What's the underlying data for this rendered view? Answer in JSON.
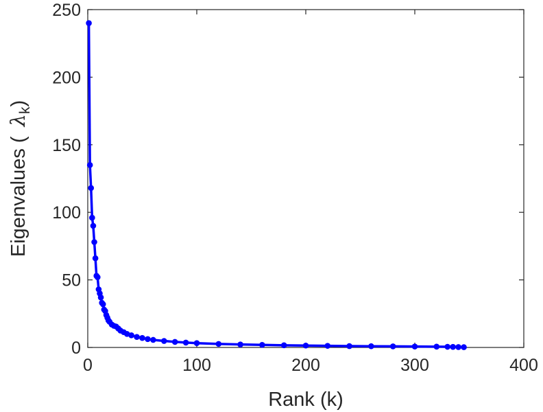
{
  "chart_data": {
    "type": "line",
    "title": "",
    "xlabel": "Rank (k)",
    "ylabel": {
      "prefix": "Eigenvalues (",
      "symbol": "λ",
      "subscript": "k",
      "suffix": ")"
    },
    "xlim": [
      0,
      400
    ],
    "ylim": [
      0,
      250
    ],
    "xticks": [
      0,
      100,
      200,
      300,
      400
    ],
    "yticks": [
      0,
      50,
      100,
      150,
      200,
      250
    ],
    "grid": false,
    "marker": "circle",
    "series": [
      {
        "color": "#0000ff",
        "x": [
          1,
          2,
          3,
          4,
          5,
          6,
          7,
          8,
          9,
          10,
          11,
          12,
          13,
          14,
          15,
          16,
          17,
          18,
          19,
          20,
          22,
          24,
          26,
          28,
          30,
          33,
          36,
          40,
          45,
          50,
          55,
          60,
          70,
          80,
          90,
          100,
          120,
          140,
          160,
          180,
          200,
          220,
          240,
          260,
          280,
          300,
          320,
          330,
          335,
          340,
          345
        ],
        "y": [
          240,
          135,
          118,
          96,
          90,
          78,
          66,
          53,
          52,
          43,
          40,
          37,
          33,
          32,
          28,
          27,
          24,
          22,
          20,
          19,
          17,
          16,
          15.5,
          14,
          12.5,
          11.3,
          10,
          9,
          7.8,
          7,
          6.2,
          5.6,
          4.8,
          4.1,
          3.6,
          3.2,
          2.6,
          2.2,
          1.9,
          1.6,
          1.4,
          1.2,
          1.0,
          0.9,
          0.8,
          0.7,
          0.6,
          0.5,
          0.4,
          0.3,
          0.2
        ]
      }
    ]
  }
}
